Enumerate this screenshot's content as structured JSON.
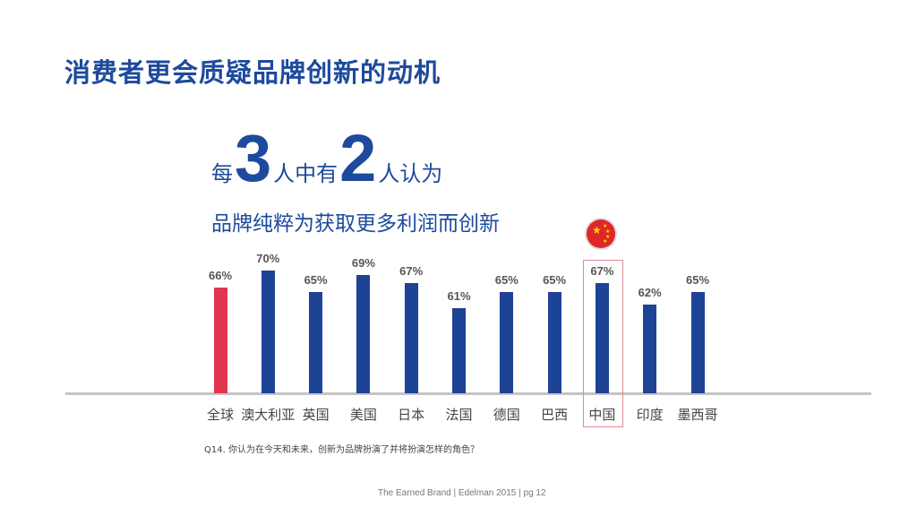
{
  "title": "消费者更会质疑品牌创新的动机",
  "headline": {
    "pre": "每",
    "num1": "3",
    "mid": "人中有",
    "num2": "2",
    "post": "人认为",
    "line2": "品牌纯粹为获取更多利润而创新"
  },
  "chart_data": {
    "type": "bar",
    "categories": [
      "全球",
      "澳大利亚",
      "英国",
      "美国",
      "日本",
      "法国",
      "德国",
      "巴西",
      "中国",
      "印度",
      "墨西哥"
    ],
    "values": [
      66,
      70,
      65,
      69,
      67,
      61,
      65,
      65,
      67,
      62,
      65
    ],
    "value_labels": [
      "66%",
      "70%",
      "65%",
      "69%",
      "67%",
      "61%",
      "65%",
      "65%",
      "67%",
      "62%",
      "65%"
    ],
    "highlight": "中国",
    "colors": {
      "global": "#e0344f",
      "country": "#1d4396"
    },
    "grid": false
  },
  "colors": {
    "title": "#1d4a9c"
  },
  "flag_icon": "china-flag-icon",
  "question": "Q14. 你认为在今天和未来，创新为品牌扮演了并将扮演怎样的角色？",
  "footer": "The Earned Brand | Edelman 2015 | pg 12"
}
